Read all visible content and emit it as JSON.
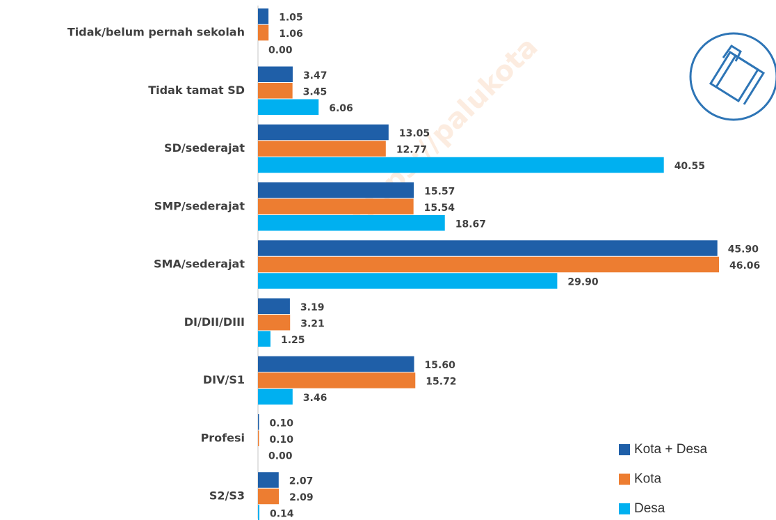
{
  "chart_data": {
    "type": "barh",
    "watermark": "https://palukota",
    "categories": [
      "Tidak/belum pernah sekolah",
      "Tidak tamat SD",
      "SD/sederajat",
      "SMP/sederajat",
      "SMA/sederajat",
      "DI/DII/DIII",
      "DIV/S1",
      "Profesi",
      "S2/S3"
    ],
    "series": [
      {
        "name": "Kota + Desa",
        "color": "#1f5fa8",
        "values": [
          1.05,
          3.47,
          13.05,
          15.57,
          45.9,
          3.19,
          15.6,
          0.1,
          2.07
        ],
        "value_labels": [
          "1.05",
          "3.47",
          "13.05",
          "15.57",
          "45.90",
          "3.19",
          "15.60",
          "0.10",
          "2.07"
        ]
      },
      {
        "name": "Kota",
        "color": "#ed7d31",
        "values": [
          1.06,
          3.45,
          12.77,
          15.54,
          46.06,
          3.21,
          15.72,
          0.1,
          2.09
        ],
        "value_labels": [
          "1.06",
          "3.45",
          "12.77",
          "15.54",
          "46.06",
          "3.21",
          "15.72",
          "0.10",
          "2.09"
        ]
      },
      {
        "name": "Desa",
        "color": "#00b0f0",
        "values": [
          0,
          6.06,
          40.55,
          18.67,
          29.9,
          1.25,
          3.46,
          0,
          0.14
        ],
        "value_labels": [
          "0.00",
          "6.06",
          "40.55",
          "18.67",
          "29.90",
          "1.25",
          "3.46",
          "0.00",
          "0.14"
        ]
      }
    ],
    "legend": "lower right"
  }
}
